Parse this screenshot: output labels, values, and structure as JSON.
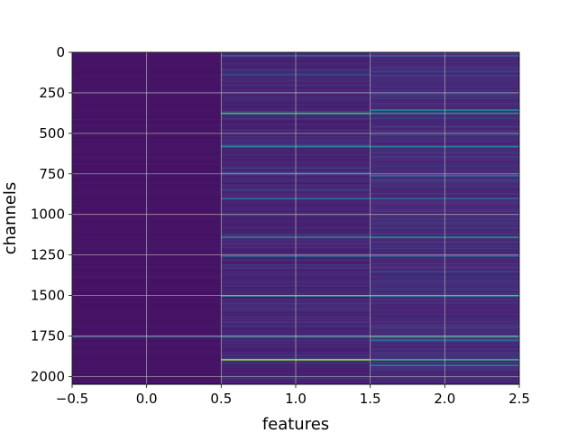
{
  "chart_data": {
    "type": "heatmap",
    "title": "",
    "xlabel": "features",
    "ylabel": "channels",
    "xlim": [
      -0.5,
      2.5
    ],
    "ylim": [
      2048,
      0
    ],
    "y_inverted": true,
    "grid": true,
    "columns": [
      0,
      1,
      2
    ],
    "rows": 2048,
    "colormap": "viridis",
    "x_ticks": [
      -0.5,
      0.0,
      0.5,
      1.0,
      1.5,
      2.0,
      2.5
    ],
    "x_tick_labels": [
      "−0.5",
      "0.0",
      "0.5",
      "1.0",
      "1.5",
      "2.0",
      "2.5"
    ],
    "y_ticks": [
      0,
      250,
      500,
      750,
      1000,
      1250,
      1500,
      1750,
      2000
    ],
    "y_tick_labels": [
      "0",
      "250",
      "500",
      "750",
      "1000",
      "1250",
      "1500",
      "1750",
      "2000"
    ],
    "column_base_values": [
      0.06,
      0.1,
      0.12
    ],
    "highlights": [
      {
        "column": 1,
        "channel": 20,
        "value": 0.35
      },
      {
        "column": 1,
        "channel": 135,
        "value": 0.28
      },
      {
        "column": 1,
        "channel": 375,
        "value": 0.75
      },
      {
        "column": 1,
        "channel": 580,
        "value": 0.6
      },
      {
        "column": 1,
        "channel": 745,
        "value": 0.4
      },
      {
        "column": 1,
        "channel": 900,
        "value": 0.45
      },
      {
        "column": 1,
        "channel": 1140,
        "value": 0.5
      },
      {
        "column": 1,
        "channel": 1255,
        "value": 0.45
      },
      {
        "column": 1,
        "channel": 1500,
        "value": 0.7
      },
      {
        "column": 1,
        "channel": 1755,
        "value": 0.4
      },
      {
        "column": 1,
        "channel": 1895,
        "value": 0.85
      },
      {
        "column": 2,
        "channel": 20,
        "value": 0.35
      },
      {
        "column": 2,
        "channel": 355,
        "value": 0.5
      },
      {
        "column": 2,
        "channel": 375,
        "value": 0.6
      },
      {
        "column": 2,
        "channel": 580,
        "value": 0.55
      },
      {
        "column": 2,
        "channel": 760,
        "value": 0.45
      },
      {
        "column": 2,
        "channel": 900,
        "value": 0.4
      },
      {
        "column": 2,
        "channel": 1140,
        "value": 0.55
      },
      {
        "column": 2,
        "channel": 1255,
        "value": 0.4
      },
      {
        "column": 2,
        "channel": 1500,
        "value": 0.65
      },
      {
        "column": 2,
        "channel": 1755,
        "value": 0.55
      },
      {
        "column": 2,
        "channel": 1775,
        "value": 0.45
      },
      {
        "column": 2,
        "channel": 1895,
        "value": 0.7
      },
      {
        "column": 2,
        "channel": 1930,
        "value": 0.5
      },
      {
        "column": 0,
        "channel": 1755,
        "value": 0.25
      }
    ]
  }
}
